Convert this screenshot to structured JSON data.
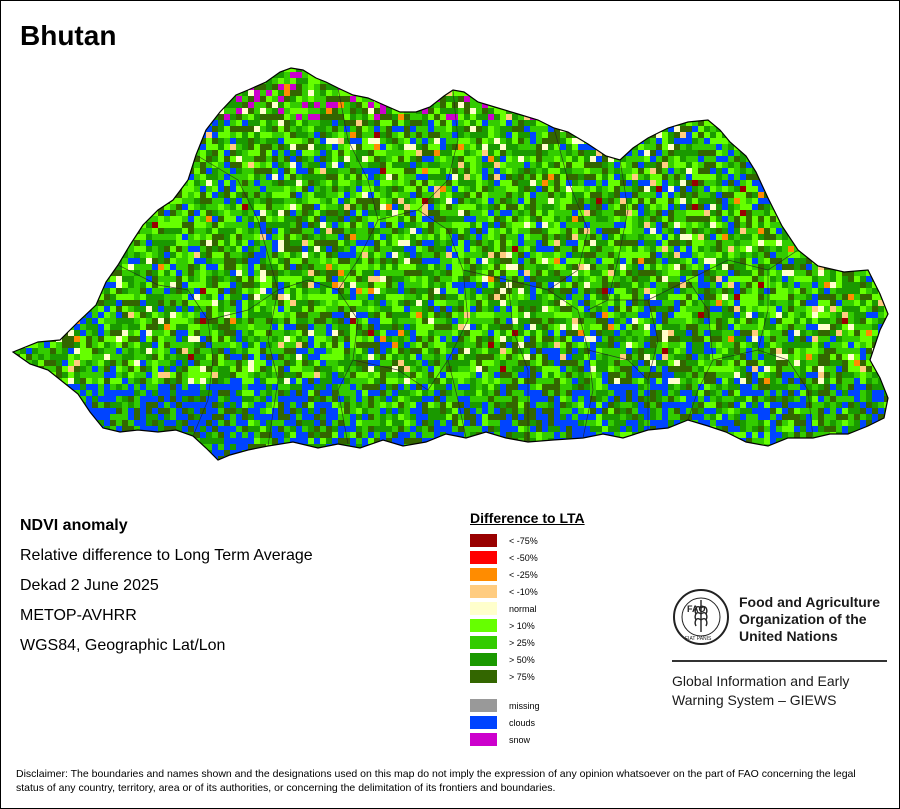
{
  "map": {
    "title": "Bhutan"
  },
  "info": {
    "product": "NDVI anomaly",
    "description": "Relative difference to Long Term Average",
    "period": "Dekad 2 June 2025",
    "sensor": "METOP-AVHRR",
    "projection": "WGS84, Geographic Lat/Lon"
  },
  "legend": {
    "title": "Difference to LTA",
    "classes": [
      {
        "label": "< -75%",
        "color": "#990000"
      },
      {
        "label": "< -50%",
        "color": "#ff0000"
      },
      {
        "label": "< -25%",
        "color": "#ff8c00"
      },
      {
        "label": "< -10%",
        "color": "#ffcc80"
      },
      {
        "label": "normal",
        "color": "#ffffcc"
      },
      {
        "label": "> 10%",
        "color": "#66ff00"
      },
      {
        "label": "> 25%",
        "color": "#33cc00"
      },
      {
        "label": "> 50%",
        "color": "#1a9900"
      },
      {
        "label": "> 75%",
        "color": "#336600"
      }
    ],
    "special": [
      {
        "label": "missing",
        "color": "#999999"
      },
      {
        "label": "clouds",
        "color": "#0044ff"
      },
      {
        "label": "snow",
        "color": "#cc00cc"
      }
    ]
  },
  "organization": {
    "name": "Food and Agriculture Organization of the United Nations",
    "system": "Global Information and Early Warning System – GIEWS",
    "logo_text": "FAO",
    "logo_motto": "FIAT PANIS"
  },
  "disclaimer": "Disclaimer: The boundaries and names shown and the designations used on this map do not imply the expression of any opinion whatsoever on the part of FAO concerning the legal status of any country, territory, area or of its authorities, or concerning the delimitation of its frontiers and boundaries."
}
